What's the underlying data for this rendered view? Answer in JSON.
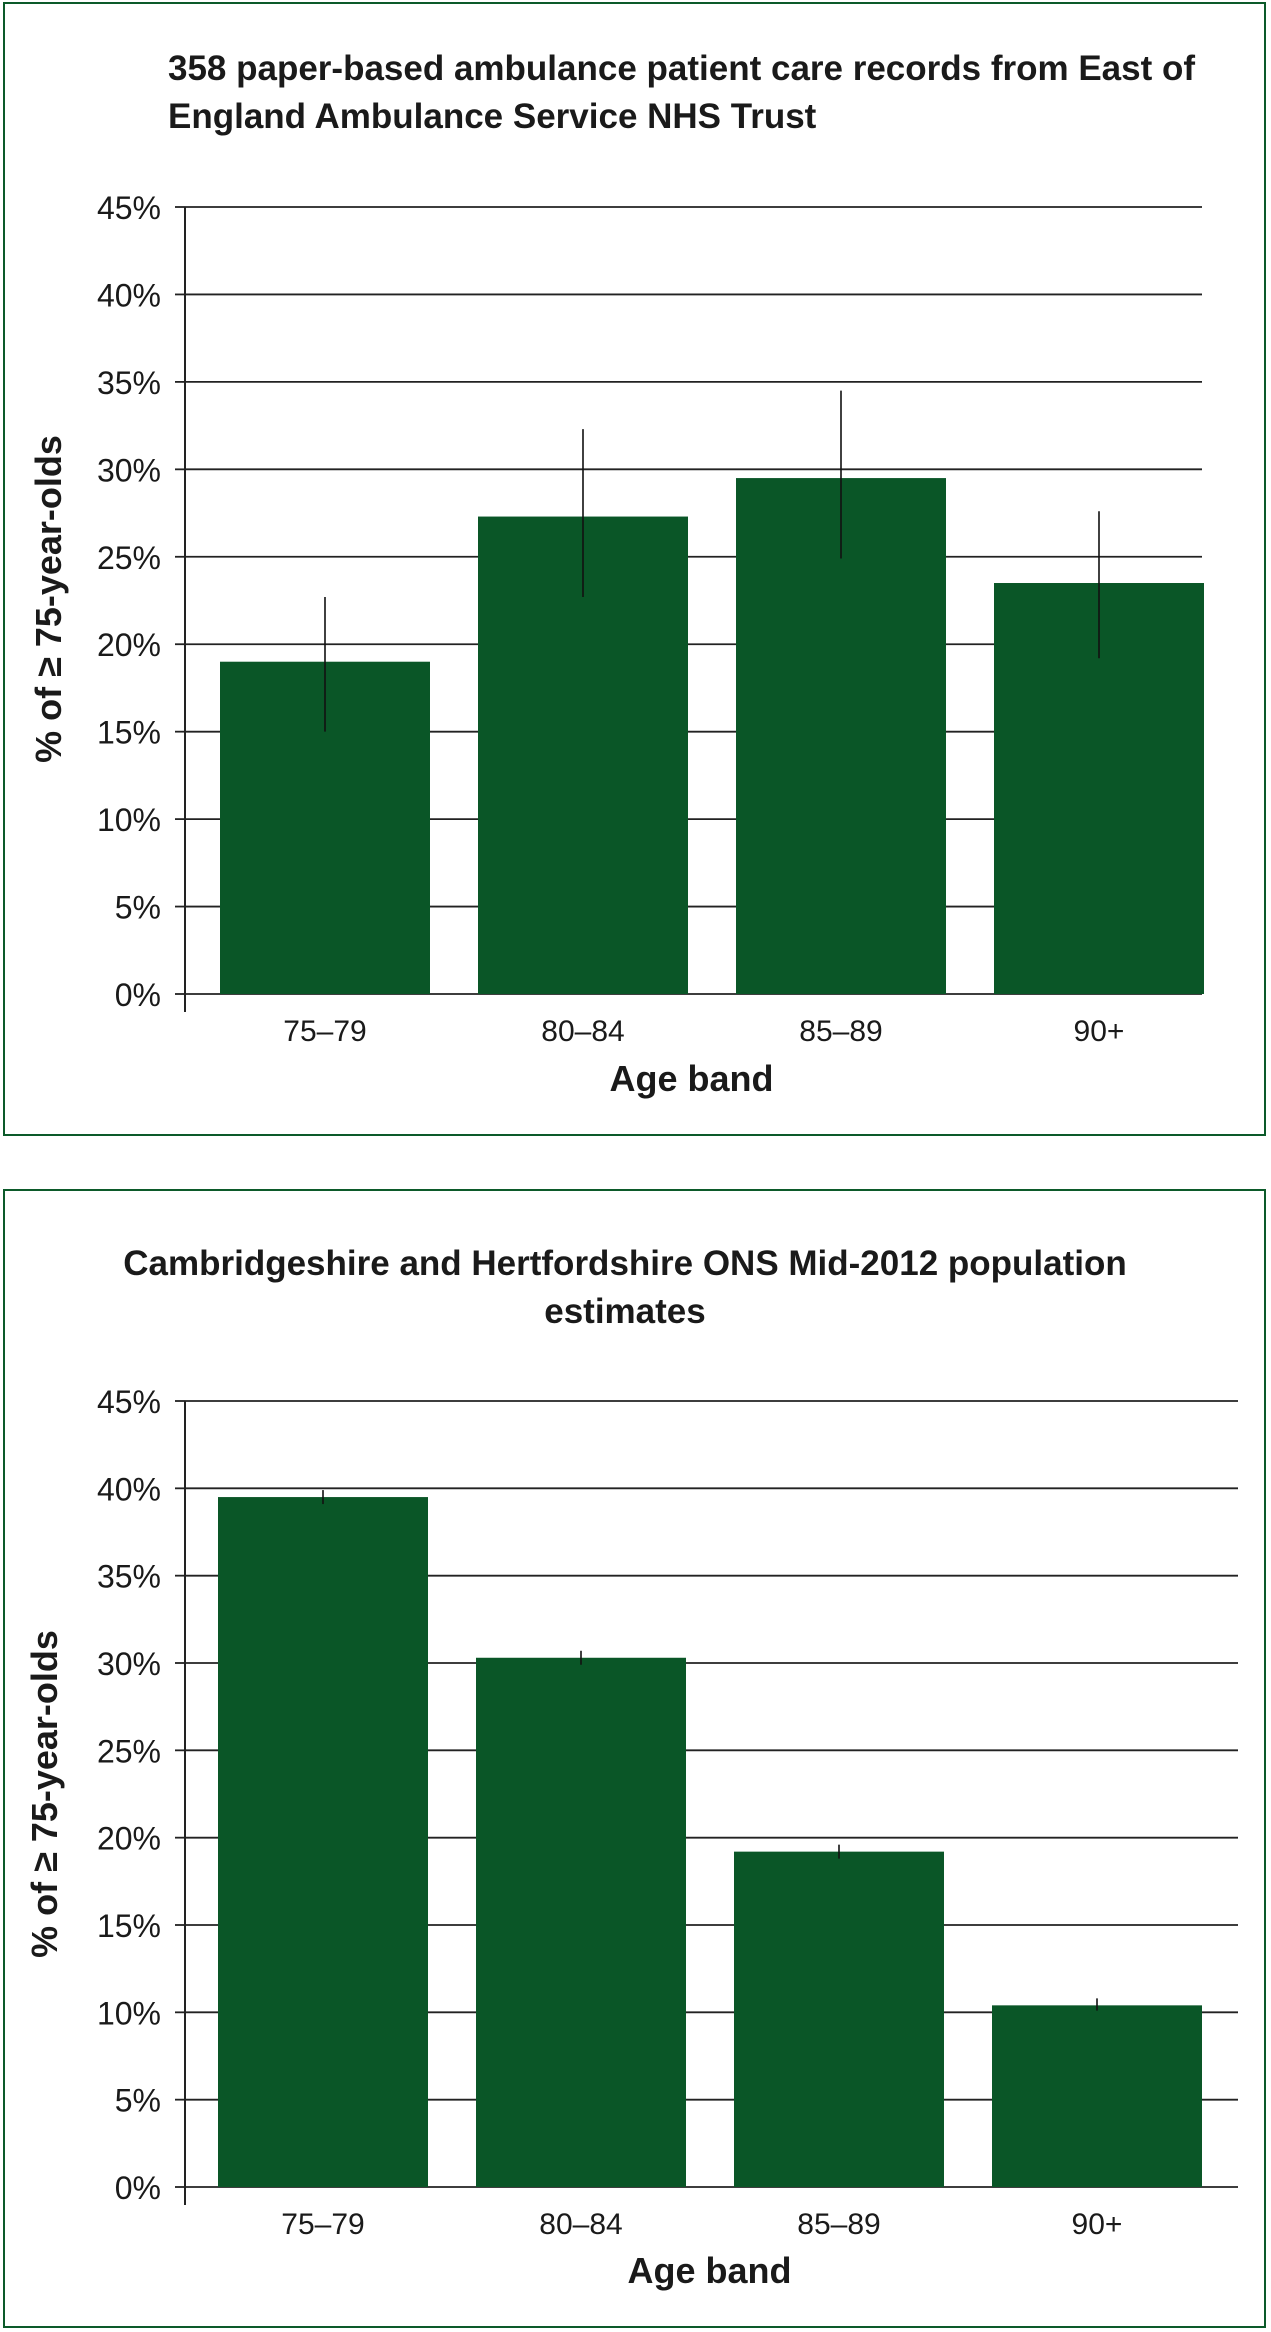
{
  "colors": {
    "bar": "#0a5627",
    "frame": "#0c5a2a",
    "grid": "#222222",
    "text": "#1a1a1a"
  },
  "chart_data": [
    {
      "type": "bar",
      "title": "358 paper-based ambulance patient care records from East of England Ambulance Service NHS Trust",
      "xlabel": "Age band",
      "ylabel": "% of ≥ 75-year-olds",
      "categories": [
        "75–79",
        "80–84",
        "85–89",
        "90+"
      ],
      "values": [
        19.0,
        27.3,
        29.5,
        23.5
      ],
      "error_low": [
        15.0,
        22.7,
        24.9,
        19.2
      ],
      "error_high": [
        22.7,
        32.3,
        34.5,
        27.6
      ],
      "ylim": [
        0,
        45
      ],
      "yticks": [
        "0%",
        "5%",
        "10%",
        "15%",
        "20%",
        "25%",
        "30%",
        "35%",
        "40%",
        "45%"
      ],
      "grid": true
    },
    {
      "type": "bar",
      "title": "Cambridgeshire and Hertfordshire ONS Mid-2012 population estimates",
      "xlabel": "Age band",
      "ylabel": "% of ≥ 75-year-olds",
      "categories": [
        "75–79",
        "80–84",
        "85–89",
        "90+"
      ],
      "values": [
        39.5,
        30.3,
        19.2,
        10.4
      ],
      "error_low": [
        39.1,
        29.9,
        18.8,
        10.1
      ],
      "error_high": [
        39.9,
        30.7,
        19.6,
        10.8
      ],
      "ylim": [
        0,
        45
      ],
      "yticks": [
        "0%",
        "5%",
        "10%",
        "15%",
        "20%",
        "25%",
        "30%",
        "35%",
        "40%",
        "45%"
      ],
      "grid": true
    }
  ]
}
